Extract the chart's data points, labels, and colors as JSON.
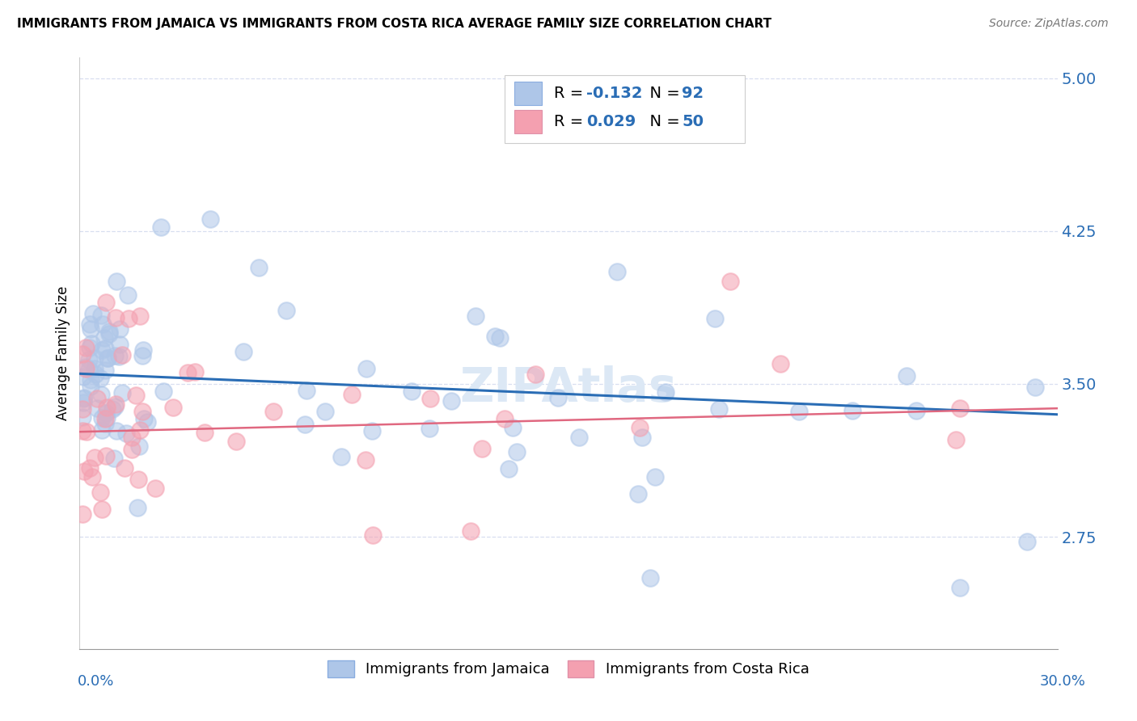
{
  "title": "IMMIGRANTS FROM JAMAICA VS IMMIGRANTS FROM COSTA RICA AVERAGE FAMILY SIZE CORRELATION CHART",
  "source": "Source: ZipAtlas.com",
  "ylabel": "Average Family Size",
  "yticks": [
    2.75,
    3.5,
    4.25,
    5.0
  ],
  "xlim": [
    0.0,
    0.3
  ],
  "ylim": [
    2.2,
    5.1
  ],
  "legend1_R": "-0.132",
  "legend1_N": "92",
  "legend2_R": "0.029",
  "legend2_N": "50",
  "jamaica_color": "#aec6e8",
  "costa_rica_color": "#f4a0b0",
  "trendline_jamaica_color": "#2a6db5",
  "trendline_costa_rica_color": "#e06880",
  "watermark_color": "#dce8f5",
  "grid_color": "#d8dff0"
}
